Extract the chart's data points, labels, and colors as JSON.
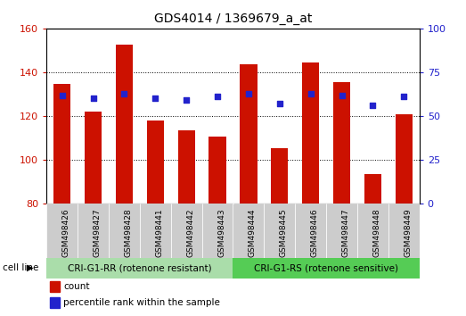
{
  "title": "GDS4014 / 1369679_a_at",
  "categories": [
    "GSM498426",
    "GSM498427",
    "GSM498428",
    "GSM498441",
    "GSM498442",
    "GSM498443",
    "GSM498444",
    "GSM498445",
    "GSM498446",
    "GSM498447",
    "GSM498448",
    "GSM498449"
  ],
  "count_values": [
    134.5,
    122.0,
    152.5,
    118.0,
    113.5,
    110.5,
    143.5,
    105.5,
    144.5,
    135.5,
    93.5,
    121.0
  ],
  "percentile_values": [
    62,
    60,
    63,
    60,
    59,
    61,
    63,
    57,
    63,
    62,
    56,
    61
  ],
  "ylim_left": [
    80,
    160
  ],
  "ylim_right": [
    0,
    100
  ],
  "yticks_left": [
    80,
    100,
    120,
    140,
    160
  ],
  "yticks_right": [
    0,
    25,
    50,
    75,
    100
  ],
  "bar_color": "#cc1100",
  "dot_color": "#2222cc",
  "background_color": "#ffffff",
  "plot_bg_color": "#ffffff",
  "group1_label": "CRI-G1-RR (rotenone resistant)",
  "group2_label": "CRI-G1-RS (rotenone sensitive)",
  "group1_color": "#aaddaa",
  "group2_color": "#55cc55",
  "cell_line_label": "cell line",
  "legend_count": "count",
  "legend_percentile": "percentile rank within the sample",
  "group1_indices": [
    0,
    1,
    2,
    3,
    4,
    5
  ],
  "group2_indices": [
    6,
    7,
    8,
    9,
    10,
    11
  ],
  "tick_bg_color": "#cccccc",
  "bar_width": 0.55
}
